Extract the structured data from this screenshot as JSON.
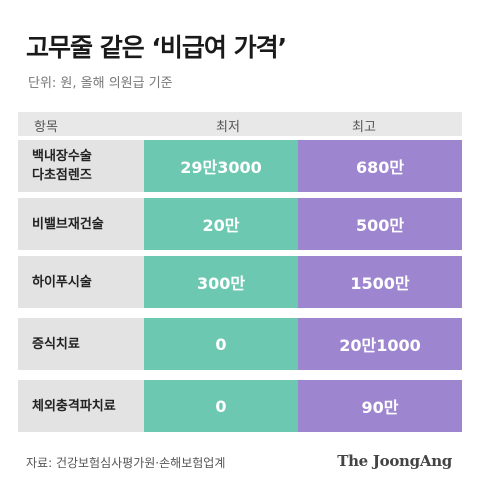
{
  "title": "고무줄 같은 ‘비급여 가격’",
  "unit": "단위: 원, 올해 의원급 기준",
  "header": {
    "item": "항목",
    "min": "최저",
    "max": "최고"
  },
  "rows": [
    {
      "item": "백내장수술\n다초점렌즈",
      "min": "29만3000",
      "max": "680만"
    },
    {
      "item": "비밸브재건술",
      "min": "20만",
      "max": "500만"
    },
    {
      "item": "하이푸시술",
      "min": "300만",
      "max": "1500만"
    },
    {
      "item": "증식치료",
      "min": "0",
      "max": "20만1000"
    },
    {
      "item": "체외충격파치료",
      "min": "0",
      "max": "90만"
    }
  ],
  "source": "자료: 건강보험심사평가원·손해보험업계",
  "logo": "The JoongAng",
  "colors": {
    "min": "#6cc8b0",
    "max": "#9d85cf",
    "item_bg": "#e3e3e3"
  }
}
